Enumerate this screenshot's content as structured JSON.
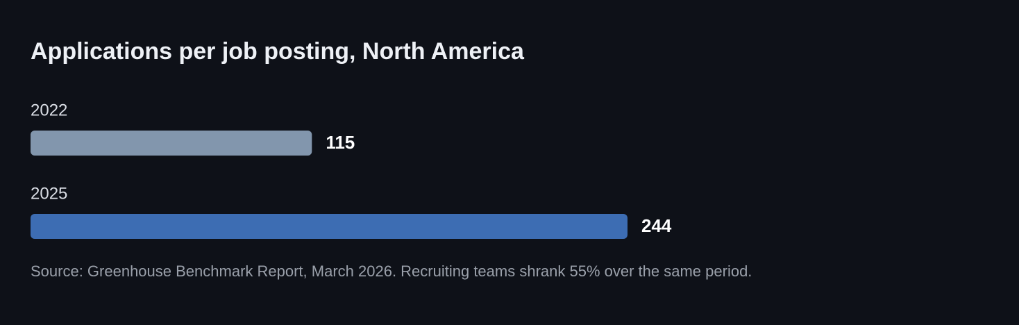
{
  "chart_data": {
    "type": "hbar",
    "title": "Applications per job posting, North America",
    "categories": [
      "2022",
      "2025"
    ],
    "values": [
      115,
      244
    ],
    "colors": [
      "#8296ad",
      "#3d6db3"
    ],
    "note": "Source: Greenhouse Benchmark Report, March 2026. Recruiting teams shrank 55% over the same period."
  }
}
